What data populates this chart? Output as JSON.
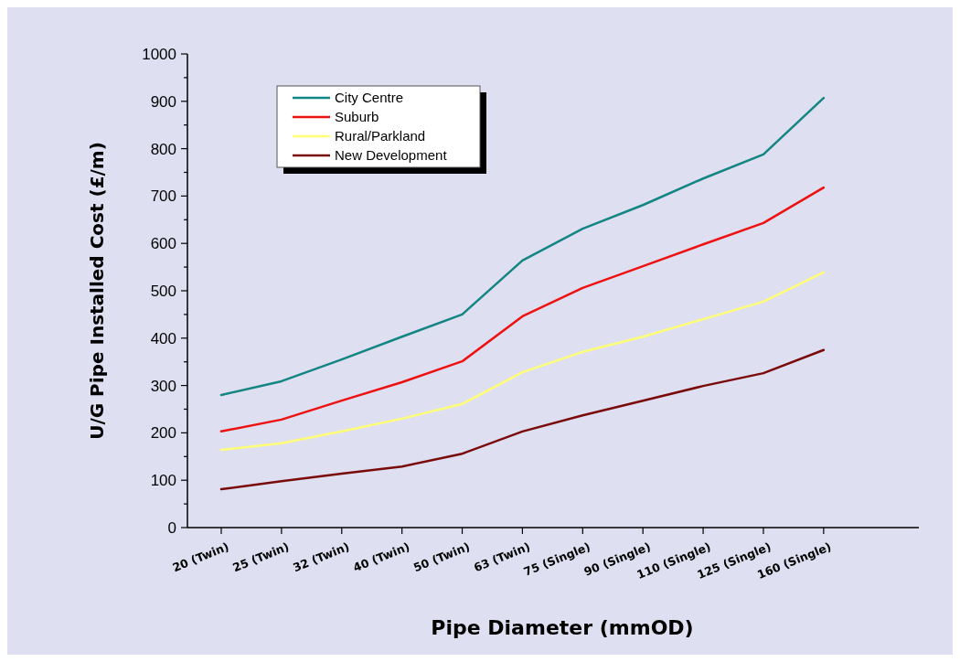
{
  "chart_data": {
    "type": "line",
    "xlabel": "Pipe Diameter (mmOD)",
    "ylabel": "U/G Pipe Installed Cost (£/m)",
    "categories": [
      "20 (Twin)",
      "25 (Twin)",
      "32 (Twin)",
      "40 (Twin)",
      "50 (Twin)",
      "63 (Twin)",
      "75 (Single)",
      "90 (Single)",
      "110 (Single)",
      "125 (Single)",
      "160 (Single)"
    ],
    "series": [
      {
        "name": "City Centre",
        "color": "#138582",
        "values": [
          280,
          309,
          355,
          403,
          450,
          564,
          631,
          681,
          737,
          788,
          907
        ]
      },
      {
        "name": "Suburb",
        "color": "#ee1111",
        "values": [
          203,
          228,
          268,
          307,
          351,
          446,
          506,
          552,
          598,
          643,
          718
        ]
      },
      {
        "name": "Rural/Parkland",
        "color": "#ffff77",
        "values": [
          164,
          178,
          203,
          230,
          261,
          328,
          371,
          403,
          440,
          477,
          539
        ]
      },
      {
        "name": "New Development",
        "color": "#7a0a0a",
        "values": [
          81,
          98,
          114,
          129,
          156,
          203,
          237,
          268,
          299,
          326,
          375
        ]
      }
    ],
    "ylim": [
      0,
      1000
    ],
    "yticks": [
      0,
      {
        "value": 50,
        "label": null
      },
      100,
      {
        "value": 150,
        "label": null
      },
      200,
      {
        "value": 250,
        "label": null
      },
      300,
      {
        "value": 350,
        "label": null
      },
      400,
      {
        "value": 450,
        "label": null
      },
      500,
      {
        "value": 550,
        "label": null
      },
      600,
      {
        "value": 650,
        "label": null
      },
      700,
      {
        "value": 750,
        "label": null
      },
      800,
      {
        "value": 850,
        "label": null
      },
      900,
      {
        "value": 950,
        "label": null
      },
      1000
    ],
    "grid": false,
    "legend": "top left",
    "marker": "none",
    "line_style": "solid"
  }
}
